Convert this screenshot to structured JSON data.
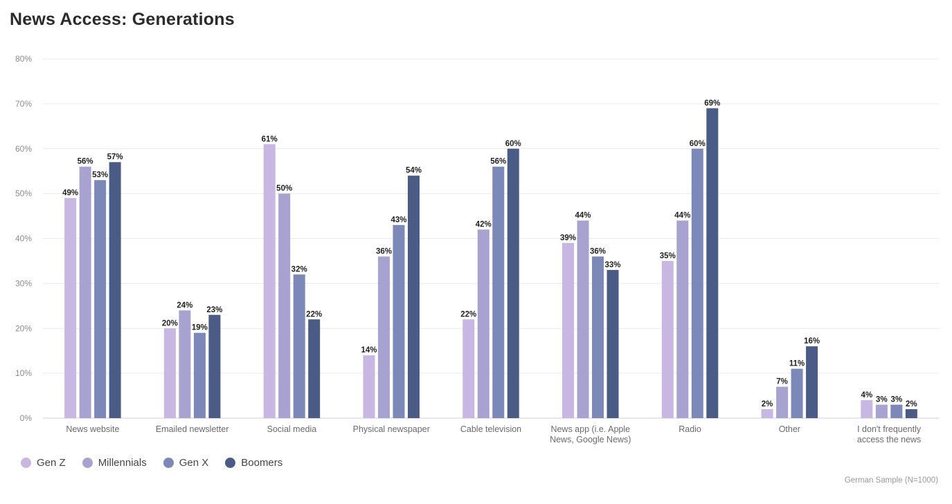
{
  "chart_data": {
    "type": "bar",
    "title": "News Access: Generations",
    "categories": [
      "News website",
      "Emailed newsletter",
      "Social media",
      "Physical newspaper",
      "Cable television",
      "News app (i.e. Apple News, Google News)",
      "Radio",
      "Other",
      "I don't frequently access the news"
    ],
    "category_lines": [
      [
        "News website"
      ],
      [
        "Emailed newsletter"
      ],
      [
        "Social media"
      ],
      [
        "Physical newspaper"
      ],
      [
        "Cable television"
      ],
      [
        "News app (i.e. Apple",
        "News, Google News)"
      ],
      [
        "Radio"
      ],
      [
        "Other"
      ],
      [
        "I don't frequently",
        "access the news"
      ]
    ],
    "series": [
      {
        "name": "Gen Z",
        "color": "#c7b7e2",
        "values": [
          49,
          20,
          61,
          14,
          22,
          39,
          35,
          2,
          4
        ]
      },
      {
        "name": "Millennials",
        "color": "#a8a2d0",
        "values": [
          56,
          24,
          50,
          36,
          42,
          44,
          44,
          7,
          3
        ]
      },
      {
        "name": "Gen X",
        "color": "#7c88b8",
        "values": [
          53,
          19,
          32,
          43,
          56,
          36,
          60,
          11,
          3
        ]
      },
      {
        "name": "Boomers",
        "color": "#4a5c86",
        "values": [
          57,
          23,
          22,
          54,
          60,
          33,
          69,
          16,
          2
        ]
      }
    ],
    "y_ticks": [
      "0%",
      "10%",
      "20%",
      "30%",
      "40%",
      "50%",
      "60%",
      "70%",
      "80%"
    ],
    "ylim": [
      0,
      80
    ],
    "grid": true,
    "legend_position": "bottom-left",
    "source_note": "German Sample (N=1000)"
  }
}
